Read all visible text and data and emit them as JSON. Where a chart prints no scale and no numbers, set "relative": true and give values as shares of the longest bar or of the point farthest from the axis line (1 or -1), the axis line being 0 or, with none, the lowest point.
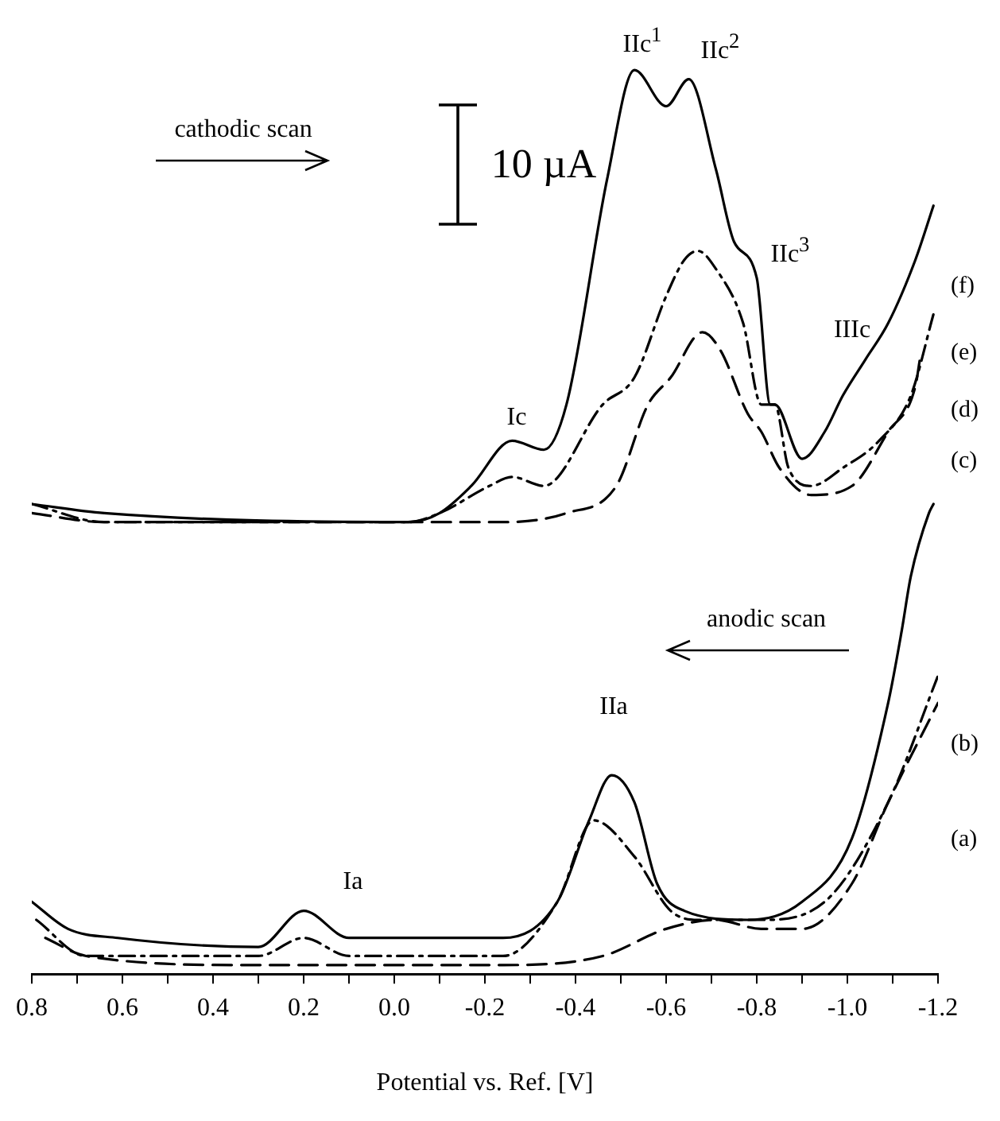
{
  "chart_data": {
    "type": "line",
    "relative": true,
    "xlabel": "Potential vs. Ref. [V]",
    "xlim": [
      0.8,
      -1.2
    ],
    "xticks": [
      0.8,
      {
        "value": 0.7,
        "label": null
      },
      0.6,
      {
        "value": 0.5,
        "label": null
      },
      0.4,
      {
        "value": 0.3,
        "label": null
      },
      0.2,
      {
        "value": 0.1,
        "label": null
      },
      {
        "value": 0,
        "label": "0.0"
      },
      {
        "value": -0.1,
        "label": null
      },
      -0.2,
      {
        "value": -0.3,
        "label": null
      },
      -0.4,
      {
        "value": -0.5,
        "label": null
      },
      -0.6,
      {
        "value": -0.7,
        "label": null
      },
      -0.8,
      {
        "value": -0.9,
        "label": null
      },
      {
        "value": -1.0,
        "label": "-1.0"
      },
      {
        "value": -1.1,
        "label": null
      },
      -1.2
    ],
    "grid": false,
    "legend": false,
    "marker": "none",
    "series": [
      {
        "name": "(f)",
        "color": "#000000",
        "line_style": "solid",
        "x": [
          0.8,
          0.64,
          -0.03,
          -0.1,
          -0.17,
          -0.26,
          -0.33,
          -0.38,
          -0.47,
          -0.53,
          -0.6,
          -0.65,
          -0.71,
          -0.75,
          -0.8,
          -0.83,
          -0.84,
          -0.9,
          -0.95,
          -0.99,
          -1.04,
          -1.09,
          -1.15,
          -1.19
        ],
        "values": [
          0.52,
          0.51,
          0.5,
          0.51,
          0.54,
          0.59,
          0.58,
          0.63,
          0.88,
          1.0,
          0.96,
          0.99,
          0.89,
          0.81,
          0.77,
          0.63,
          0.63,
          0.57,
          0.6,
          0.64,
          0.68,
          0.72,
          0.79,
          0.85
        ]
      },
      {
        "name": "(e)",
        "color": "#000000",
        "line_style": "dashdot",
        "x": [
          0.8,
          0.64,
          -0.03,
          -0.1,
          -0.21,
          -0.26,
          -0.33,
          -0.46,
          -0.53,
          -0.6,
          -0.64,
          -0.67,
          -0.71,
          -0.77,
          -0.81,
          -0.84,
          -0.87,
          -0.92,
          -0.99,
          -1.07,
          -1.14,
          -1.19
        ],
        "values": [
          0.52,
          0.5,
          0.5,
          0.51,
          0.54,
          0.55,
          0.54,
          0.63,
          0.66,
          0.75,
          0.79,
          0.8,
          0.78,
          0.72,
          0.63,
          0.63,
          0.56,
          0.54,
          0.56,
          0.59,
          0.64,
          0.73
        ]
      },
      {
        "name": "(d)",
        "color": "#000000",
        "line_style": "dashed",
        "x": [
          0.8,
          0.64,
          -0.03,
          -0.24,
          -0.38,
          -0.49,
          -0.56,
          -0.61,
          -0.68,
          -0.72,
          -0.78,
          -0.81,
          -0.85,
          -0.92,
          -1.01,
          -1.09,
          -1.15,
          -1.16
        ],
        "values": [
          0.51,
          0.5,
          0.5,
          0.5,
          0.51,
          0.54,
          0.63,
          0.66,
          0.71,
          0.69,
          0.62,
          0.6,
          0.56,
          0.53,
          0.54,
          0.6,
          0.65,
          0.68
        ]
      },
      {
        "name": "(c)",
        "color": "#000000",
        "line_style": "solid",
        "x": [
          0.8,
          0.72,
          0.61,
          0.3,
          0.2,
          0.1,
          -0.24,
          -0.36,
          -0.43,
          -0.48,
          -0.53,
          -0.58,
          -0.64,
          -0.78,
          -0.9,
          -1.01,
          -1.09,
          -1.12,
          -1.14,
          -1.18,
          -1.19
        ],
        "values": [
          0.08,
          0.05,
          0.04,
          0.03,
          0.07,
          0.04,
          0.04,
          0.08,
          0.17,
          0.22,
          0.19,
          0.1,
          0.07,
          0.06,
          0.08,
          0.15,
          0.3,
          0.38,
          0.44,
          0.51,
          0.52
        ]
      },
      {
        "name": "(b)",
        "color": "#000000",
        "line_style": "dashdot",
        "x": [
          0.79,
          0.68,
          0.3,
          0.2,
          0.1,
          -0.24,
          -0.36,
          -0.44,
          -0.53,
          -0.61,
          -0.67,
          -0.81,
          -0.95,
          -1.09,
          -1.2
        ],
        "values": [
          0.06,
          0.02,
          0.02,
          0.04,
          0.02,
          0.02,
          0.08,
          0.17,
          0.13,
          0.07,
          0.06,
          0.06,
          0.08,
          0.19,
          0.33
        ]
      },
      {
        "name": "(a)",
        "color": "#000000",
        "line_style": "dashed",
        "x": [
          0.77,
          0.68,
          0.32,
          -0.24,
          -0.46,
          -0.6,
          -0.71,
          -0.81,
          -0.9,
          -1.01,
          -1.09,
          -1.2
        ],
        "values": [
          0.04,
          0.02,
          0.01,
          0.01,
          0.02,
          0.05,
          0.06,
          0.05,
          0.05,
          0.1,
          0.19,
          0.3
        ]
      }
    ],
    "annotations": [
      "cathodic scan",
      "anodic scan",
      "10 µA",
      "Ic",
      "IIc$^{1}$",
      "IIc$^{2}$",
      "IIc$^{3}$",
      "IIIc",
      "IIa",
      "Ia"
    ]
  }
}
